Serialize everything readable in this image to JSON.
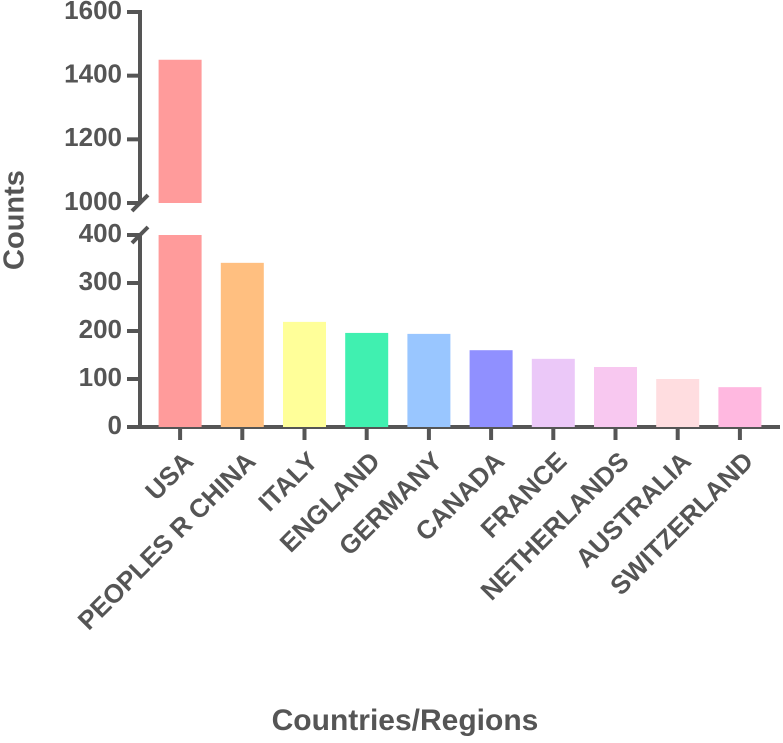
{
  "chart_data": {
    "type": "bar",
    "x_label": "Countries/Regions",
    "y_label": "Counts",
    "categories": [
      "USA",
      "PEOPLES R CHINA",
      "ITALY",
      "ENGLAND",
      "GERMANY",
      "CANADA",
      "FRANCE",
      "NETHERLANDS",
      "AUSTRALIA",
      "SWITZERLAND"
    ],
    "values": [
      1450,
      342,
      219,
      196,
      194,
      160,
      142,
      125,
      100,
      83
    ],
    "colors": [
      "#ff9b9b",
      "#ffbf80",
      "#ffff99",
      "#40f0b0",
      "#99c6ff",
      "#9090ff",
      "#ebc8f8",
      "#f8c8f0",
      "#ffdde0",
      "#ffb8e0"
    ],
    "y_segments": [
      {
        "ylim": [
          0,
          400
        ],
        "yticks": [
          0,
          100,
          200,
          300,
          400
        ]
      },
      {
        "ylim": [
          1000,
          1600
        ],
        "yticks": [
          1000,
          1200,
          1400,
          1600
        ]
      }
    ]
  }
}
